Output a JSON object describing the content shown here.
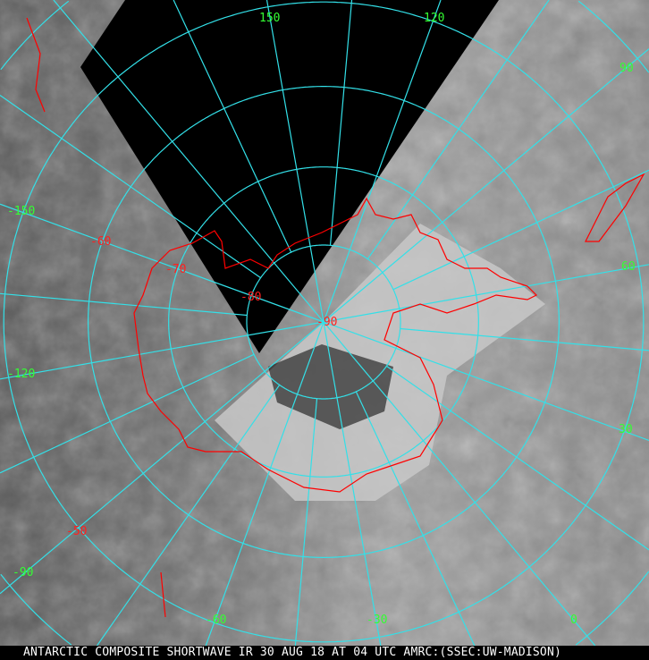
{
  "caption": "ANTARCTIC COMPOSITE SHORTWAVE IR 30 AUG 18 AT 04 UTC AMRC:(SSEC:UW-MADISON)",
  "colors": {
    "grid": "#33e0e8",
    "coast": "#ff0000",
    "lon_label": "#33ff33",
    "lat_label": "#ff2020",
    "no_data": "#000000"
  },
  "projection": "south-polar-stereographic",
  "longitude_labels": [
    "150",
    "120",
    "90",
    "60",
    "30",
    "0",
    "-30",
    "-60",
    "-90",
    "-120",
    "-150"
  ],
  "latitude_labels": [
    "-50",
    "-60",
    "-70",
    "-80",
    "-90"
  ]
}
